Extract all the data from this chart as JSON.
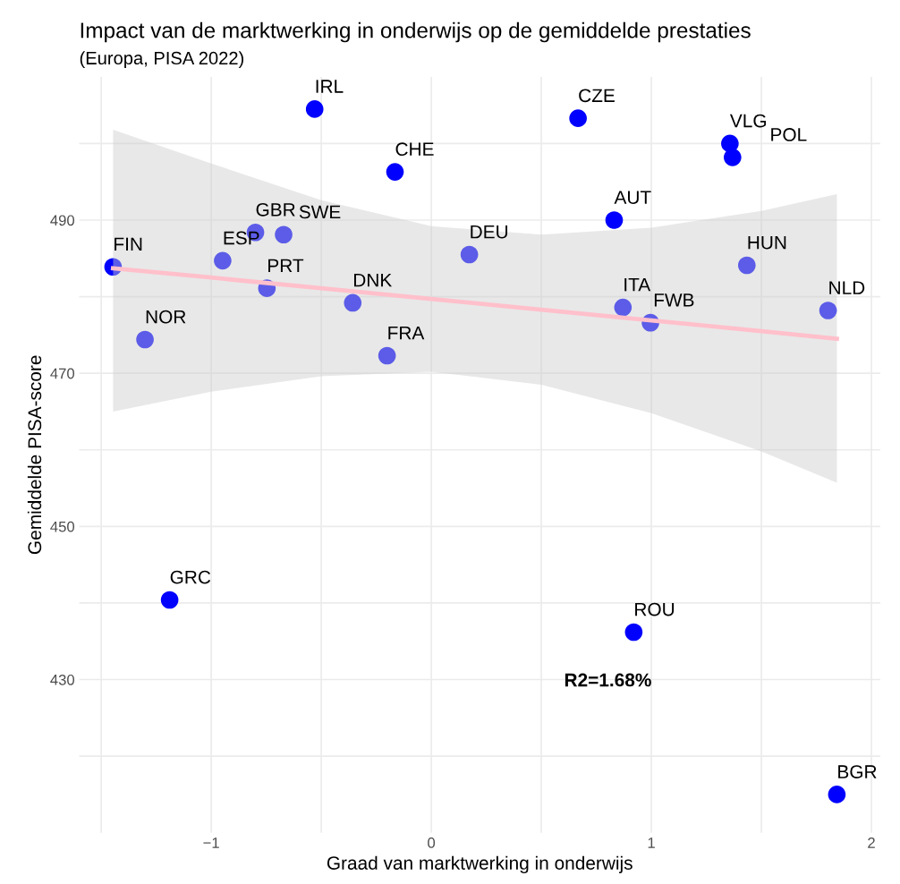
{
  "chart_data": {
    "type": "scatter",
    "title": "Impact van de marktwerking in onderwijs op de gemiddelde prestaties",
    "subtitle": "(Europa, PISA 2022)",
    "xlabel": "Graad van marktwerking in onderwijs",
    "ylabel": "Gemiddelde PISA-score",
    "xlim": [
      -1.6,
      2.04
    ],
    "ylim": [
      410,
      508.7
    ],
    "xticks": [
      {
        "value": -1.5,
        "label": null
      },
      {
        "value": -1,
        "label": "−1"
      },
      {
        "value": -0.5,
        "label": null
      },
      0,
      {
        "value": 0.5,
        "label": null
      },
      1,
      {
        "value": 1.5,
        "label": null
      },
      2
    ],
    "yticks": [
      {
        "value": 420,
        "label": null
      },
      430,
      {
        "value": 440,
        "label": null
      },
      450,
      {
        "value": 460,
        "label": null
      },
      470,
      {
        "value": 480,
        "label": null
      },
      490,
      {
        "value": 500,
        "label": null
      }
    ],
    "grid": true,
    "legend": false,
    "marker": "circle",
    "series": [
      {
        "color": "#0000ff",
        "x": [
          -1.446,
          -1.301,
          -1.189,
          -0.948,
          -0.799,
          -0.671,
          -0.747,
          -0.53,
          -0.357,
          -0.165,
          -0.201,
          0.173,
          0.667,
          0.831,
          0.871,
          0.996,
          0.92,
          1.357,
          1.369,
          1.434,
          1.803,
          1.843
        ],
        "values": [
          483.9,
          474.4,
          440.4,
          484.7,
          488.4,
          488.1,
          481.1,
          504.5,
          479.2,
          496.3,
          472.3,
          485.5,
          503.3,
          490.0,
          478.6,
          476.6,
          436.2,
          500.0,
          498.2,
          484.1,
          478.2,
          415.0
        ]
      },
      {
        "type": "line",
        "marker": "none",
        "color": "#ffc0cb",
        "x": [
          -1.446,
          -1.0,
          -0.5,
          0.0,
          0.5,
          1.0,
          1.5,
          1.843
        ],
        "values": [
          483.7,
          482.5,
          481.1,
          479.7,
          478.3,
          476.9,
          475.5,
          474.5
        ],
        "lower": [
          465.0,
          467.6,
          469.6,
          470.2,
          468.5,
          464.8,
          459.8,
          455.7
        ],
        "upper": [
          501.8,
          497.4,
          492.6,
          489.2,
          488.1,
          489.0,
          491.2,
          493.4
        ]
      }
    ],
    "annotations": [
      {
        "text": "FIN",
        "x": -1.446,
        "y": 483.9
      },
      {
        "text": "NOR",
        "x": -1.301,
        "y": 474.4
      },
      {
        "text": "GRC",
        "x": -1.189,
        "y": 440.4
      },
      {
        "text": "ESP",
        "x": -0.948,
        "y": 484.7
      },
      {
        "text": "GBR",
        "x": -0.799,
        "y": 488.4
      },
      {
        "text": "SWE",
        "x": -0.671,
        "y": 488.1
      },
      {
        "text": "PRT",
        "x": -0.747,
        "y": 481.1
      },
      {
        "text": "IRL",
        "x": -0.53,
        "y": 504.5
      },
      {
        "text": "DNK",
        "x": -0.357,
        "y": 479.2
      },
      {
        "text": "CHE",
        "x": -0.165,
        "y": 496.3
      },
      {
        "text": "FRA",
        "x": -0.201,
        "y": 472.3
      },
      {
        "text": "DEU",
        "x": 0.173,
        "y": 485.5
      },
      {
        "text": "CZE",
        "x": 0.667,
        "y": 503.3
      },
      {
        "text": "AUT",
        "x": 0.831,
        "y": 490.0
      },
      {
        "text": "ITA",
        "x": 0.871,
        "y": 478.6
      },
      {
        "text": "FWB",
        "x": 0.996,
        "y": 476.6
      },
      {
        "text": "ROU",
        "x": 0.92,
        "y": 436.2
      },
      {
        "text": "VLG",
        "x": 1.357,
        "y": 500.0
      },
      {
        "text": "POL",
        "x": 1.369,
        "y": 498.2
      },
      {
        "text": "HUN",
        "x": 1.434,
        "y": 484.1
      },
      {
        "text": "NLD",
        "x": 1.803,
        "y": 478.2
      },
      {
        "text": "BGR",
        "x": 1.843,
        "y": 415.0
      },
      "R2=1.68%"
    ]
  }
}
